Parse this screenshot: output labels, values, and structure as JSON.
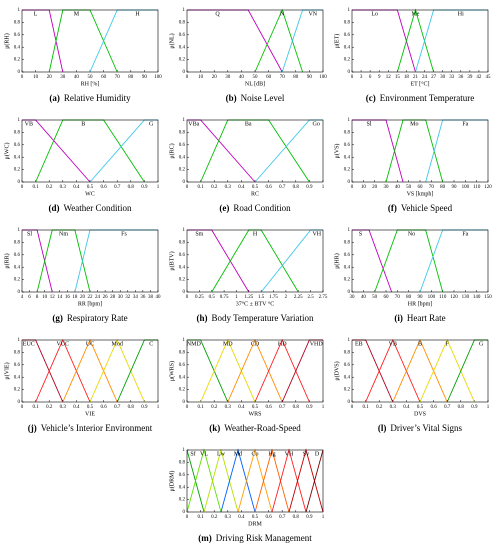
{
  "chart_data": [
    {
      "type": "line",
      "label": "(a)",
      "title": "Relative Humidity",
      "xlabel": "RH [%]",
      "ylabel": "μ(RH)",
      "xlim": [
        0,
        100
      ],
      "ylim": [
        0,
        1
      ],
      "xticks": [
        0,
        10,
        20,
        30,
        40,
        50,
        60,
        70,
        80,
        90,
        100
      ],
      "yticks": [
        0,
        0.2,
        0.4,
        0.6,
        0.8,
        1
      ],
      "series": [
        {
          "name": "L",
          "color": "#c000c0",
          "x": [
            0,
            20,
            30
          ],
          "values": [
            1,
            1,
            0
          ]
        },
        {
          "name": "M",
          "color": "#00c000",
          "x": [
            20,
            30,
            50,
            70
          ],
          "values": [
            0,
            1,
            1,
            0
          ]
        },
        {
          "name": "H",
          "color": "#40c8e8",
          "x": [
            50,
            70,
            100
          ],
          "values": [
            0,
            1,
            1
          ]
        }
      ]
    },
    {
      "type": "line",
      "label": "(b)",
      "title": "Noise Level",
      "xlabel": "NL [dB]",
      "ylabel": "μ(NL)",
      "xlim": [
        0,
        100
      ],
      "ylim": [
        0,
        1
      ],
      "xticks": [
        0,
        10,
        20,
        30,
        40,
        50,
        60,
        70,
        80,
        90,
        100
      ],
      "yticks": [
        0,
        0.2,
        0.4,
        0.6,
        0.8,
        1
      ],
      "series": [
        {
          "name": "Q",
          "color": "#c000c0",
          "x": [
            0,
            45,
            70
          ],
          "values": [
            1,
            1,
            0
          ]
        },
        {
          "name": "N",
          "color": "#00c000",
          "x": [
            50,
            70,
            85
          ],
          "values": [
            0,
            1,
            0
          ]
        },
        {
          "name": "VN",
          "color": "#40c8e8",
          "x": [
            70,
            85,
            100
          ],
          "values": [
            0,
            1,
            1
          ]
        }
      ]
    },
    {
      "type": "line",
      "label": "(c)",
      "title": "Environment Temperature",
      "xlabel": "ET [°C]",
      "ylabel": "μ(ET)",
      "xlim": [
        0,
        45
      ],
      "ylim": [
        0,
        1
      ],
      "xticks": [
        0,
        3,
        6,
        9,
        12,
        15,
        18,
        21,
        24,
        27,
        30,
        33,
        36,
        39,
        42,
        45
      ],
      "yticks": [
        0,
        0.2,
        0.4,
        0.6,
        0.8,
        1
      ],
      "series": [
        {
          "name": "Lo",
          "color": "#c000c0",
          "x": [
            0,
            15,
            21
          ],
          "values": [
            1,
            1,
            0
          ]
        },
        {
          "name": "Me",
          "color": "#00c000",
          "x": [
            15,
            21,
            27
          ],
          "values": [
            0,
            1,
            0
          ]
        },
        {
          "name": "Hi",
          "color": "#40c8e8",
          "x": [
            21,
            27,
            45
          ],
          "values": [
            0,
            1,
            1
          ]
        }
      ]
    },
    {
      "type": "line",
      "label": "(d)",
      "title": "Weather Condition",
      "xlabel": "WC",
      "ylabel": "μ(WC)",
      "xlim": [
        0,
        1
      ],
      "ylim": [
        0,
        1
      ],
      "xticks": [
        0,
        0.1,
        0.2,
        0.3,
        0.4,
        0.5,
        0.6,
        0.7,
        0.8,
        0.9,
        1
      ],
      "yticks": [
        0,
        0.2,
        0.4,
        0.6,
        0.8,
        1
      ],
      "series": [
        {
          "name": "VB",
          "color": "#c000c0",
          "x": [
            0,
            0.1,
            0.5
          ],
          "values": [
            1,
            1,
            0
          ]
        },
        {
          "name": "B",
          "color": "#00c000",
          "x": [
            0.1,
            0.3,
            0.6,
            0.9
          ],
          "values": [
            0,
            1,
            1,
            0
          ]
        },
        {
          "name": "G",
          "color": "#40c8e8",
          "x": [
            0.5,
            0.9,
            1
          ],
          "values": [
            0,
            1,
            1
          ]
        }
      ]
    },
    {
      "type": "line",
      "label": "(e)",
      "title": "Road Condition",
      "xlabel": "RC",
      "ylabel": "μ(RC)",
      "xlim": [
        0,
        1
      ],
      "ylim": [
        0,
        1
      ],
      "xticks": [
        0,
        0.1,
        0.2,
        0.3,
        0.4,
        0.5,
        0.6,
        0.7,
        0.8,
        0.9,
        1
      ],
      "yticks": [
        0,
        0.2,
        0.4,
        0.6,
        0.8,
        1
      ],
      "series": [
        {
          "name": "VBa",
          "color": "#c000c0",
          "x": [
            0,
            0.1,
            0.5
          ],
          "values": [
            1,
            1,
            0
          ]
        },
        {
          "name": "Ba",
          "color": "#00c000",
          "x": [
            0.1,
            0.3,
            0.6,
            0.9
          ],
          "values": [
            0,
            1,
            1,
            0
          ]
        },
        {
          "name": "Go",
          "color": "#40c8e8",
          "x": [
            0.5,
            0.9,
            1
          ],
          "values": [
            0,
            1,
            1
          ]
        }
      ]
    },
    {
      "type": "line",
      "label": "(f)",
      "title": "Vehicle Speed",
      "xlabel": "VS [kmph]",
      "ylabel": "μ(VS)",
      "xlim": [
        0,
        120
      ],
      "ylim": [
        0,
        1
      ],
      "xticks": [
        0,
        10,
        20,
        30,
        40,
        50,
        60,
        70,
        80,
        90,
        100,
        110,
        120
      ],
      "yticks": [
        0,
        0.2,
        0.4,
        0.6,
        0.8,
        1
      ],
      "series": [
        {
          "name": "Sl",
          "color": "#c000c0",
          "x": [
            0,
            30,
            45
          ],
          "values": [
            1,
            1,
            0
          ]
        },
        {
          "name": "Mo",
          "color": "#00c000",
          "x": [
            30,
            45,
            65,
            80
          ],
          "values": [
            0,
            1,
            1,
            0
          ]
        },
        {
          "name": "Fa",
          "color": "#40c8e8",
          "x": [
            65,
            80,
            120
          ],
          "values": [
            0,
            1,
            1
          ]
        }
      ]
    },
    {
      "type": "line",
      "label": "(g)",
      "title": "Respiratory Rate",
      "xlabel": "RR [bpm]",
      "ylabel": "μ(RR)",
      "xlim": [
        4,
        40
      ],
      "ylim": [
        0,
        1
      ],
      "xticks": [
        4,
        6,
        8,
        10,
        12,
        14,
        16,
        18,
        20,
        22,
        24,
        26,
        28,
        30,
        32,
        34,
        36,
        38,
        40
      ],
      "yticks": [
        0,
        0.2,
        0.4,
        0.6,
        0.8,
        1
      ],
      "series": [
        {
          "name": "Sl",
          "color": "#c000c0",
          "x": [
            4,
            8,
            12
          ],
          "values": [
            1,
            1,
            0
          ]
        },
        {
          "name": "Nm",
          "color": "#00c000",
          "x": [
            8,
            12,
            18,
            22
          ],
          "values": [
            0,
            1,
            1,
            0
          ]
        },
        {
          "name": "Fs",
          "color": "#40c8e8",
          "x": [
            18,
            22,
            40
          ],
          "values": [
            0,
            1,
            1
          ]
        }
      ]
    },
    {
      "type": "line",
      "label": "(h)",
      "title": "Body Temperature Variation",
      "xlabel": "37°C ± BTV °C",
      "ylabel": "μ(BTV)",
      "xlim": [
        0,
        2.75
      ],
      "ylim": [
        0,
        1
      ],
      "xticks": [
        0,
        0.25,
        0.5,
        0.75,
        1,
        1.25,
        1.5,
        1.75,
        2,
        2.25,
        2.5,
        2.75
      ],
      "yticks": [
        0,
        0.2,
        0.4,
        0.6,
        0.8,
        1
      ],
      "series": [
        {
          "name": "Sm",
          "color": "#c000c0",
          "x": [
            0,
            0.5,
            1.25
          ],
          "values": [
            1,
            1,
            0
          ]
        },
        {
          "name": "H",
          "color": "#00c000",
          "x": [
            0.5,
            1.25,
            1.5,
            2.25
          ],
          "values": [
            0,
            1,
            1,
            0
          ]
        },
        {
          "name": "VH",
          "color": "#40c8e8",
          "x": [
            1.5,
            2.5,
            2.75
          ],
          "values": [
            0,
            1,
            1
          ]
        }
      ]
    },
    {
      "type": "line",
      "label": "(i)",
      "title": "Heart Rate",
      "xlabel": "HR [bpm]",
      "ylabel": "μ(HR)",
      "xlim": [
        30,
        150
      ],
      "ylim": [
        0,
        1
      ],
      "xticks": [
        30,
        40,
        50,
        60,
        70,
        80,
        90,
        100,
        110,
        120,
        130,
        140,
        150
      ],
      "yticks": [
        0,
        0.2,
        0.4,
        0.6,
        0.8,
        1
      ],
      "series": [
        {
          "name": "S",
          "color": "#c000c0",
          "x": [
            30,
            45,
            65
          ],
          "values": [
            1,
            1,
            0
          ]
        },
        {
          "name": "No",
          "color": "#00c000",
          "x": [
            50,
            70,
            95,
            110
          ],
          "values": [
            0,
            1,
            1,
            0
          ]
        },
        {
          "name": "Fa",
          "color": "#40c8e8",
          "x": [
            90,
            110,
            150
          ],
          "values": [
            0,
            1,
            1
          ]
        }
      ]
    },
    {
      "type": "line",
      "label": "(j)",
      "title": "Vehicle’s Interior Environment",
      "xlabel": "VIE",
      "ylabel": "μ(VIE)",
      "xlim": [
        0,
        1
      ],
      "ylim": [
        0,
        1
      ],
      "xticks": [
        0,
        0.1,
        0.2,
        0.3,
        0.4,
        0.5,
        0.6,
        0.7,
        0.8,
        0.9,
        1
      ],
      "yticks": [
        0,
        0.2,
        0.4,
        0.6,
        0.8,
        1
      ],
      "series": [
        {
          "name": "EUC",
          "color": "#b00020",
          "x": [
            0,
            0.1,
            0.3
          ],
          "values": [
            1,
            1,
            0
          ]
        },
        {
          "name": "VUC",
          "color": "#ff2020",
          "x": [
            0.1,
            0.3,
            0.5
          ],
          "values": [
            0,
            1,
            0
          ]
        },
        {
          "name": "UC",
          "color": "#ff8c00",
          "x": [
            0.3,
            0.5,
            0.7
          ],
          "values": [
            0,
            1,
            0
          ]
        },
        {
          "name": "Mod",
          "color": "#e8d800",
          "x": [
            0.5,
            0.7,
            0.9
          ],
          "values": [
            0,
            1,
            0
          ]
        },
        {
          "name": "C",
          "color": "#00a000",
          "x": [
            0.7,
            0.9,
            1
          ],
          "values": [
            0,
            1,
            1
          ]
        }
      ]
    },
    {
      "type": "line",
      "label": "(k)",
      "title": "Weather-Road-Speed",
      "xlabel": "WRS",
      "ylabel": "μ(WRS)",
      "xlim": [
        0,
        1
      ],
      "ylim": [
        0,
        1
      ],
      "xticks": [
        0,
        0.1,
        0.2,
        0.3,
        0.4,
        0.5,
        0.6,
        0.7,
        0.8,
        0.9,
        1
      ],
      "yticks": [
        0,
        0.2,
        0.4,
        0.6,
        0.8,
        1
      ],
      "series": [
        {
          "name": "NMD",
          "color": "#00a000",
          "x": [
            0,
            0.1,
            0.3
          ],
          "values": [
            1,
            1,
            0
          ]
        },
        {
          "name": "MD",
          "color": "#e8d800",
          "x": [
            0.1,
            0.3,
            0.5
          ],
          "values": [
            0,
            1,
            0
          ]
        },
        {
          "name": "CD",
          "color": "#ff8c00",
          "x": [
            0.3,
            0.5,
            0.7
          ],
          "values": [
            0,
            1,
            0
          ]
        },
        {
          "name": "HD",
          "color": "#ff2020",
          "x": [
            0.5,
            0.7,
            0.9
          ],
          "values": [
            0,
            1,
            0
          ]
        },
        {
          "name": "VHD",
          "color": "#b00020",
          "x": [
            0.7,
            0.9,
            1
          ],
          "values": [
            0,
            1,
            1
          ]
        }
      ]
    },
    {
      "type": "line",
      "label": "(l)",
      "title": "Driver’s Vital Signs",
      "xlabel": "DVS",
      "ylabel": "μ(DVS)",
      "xlim": [
        0,
        1
      ],
      "ylim": [
        0,
        1
      ],
      "xticks": [
        0,
        0.1,
        0.2,
        0.3,
        0.4,
        0.5,
        0.6,
        0.7,
        0.8,
        0.9,
        1
      ],
      "yticks": [
        0,
        0.2,
        0.4,
        0.6,
        0.8,
        1
      ],
      "series": [
        {
          "name": "EB",
          "color": "#b00020",
          "x": [
            0,
            0.1,
            0.3
          ],
          "values": [
            1,
            1,
            0
          ]
        },
        {
          "name": "VB",
          "color": "#ff2020",
          "x": [
            0.1,
            0.3,
            0.5
          ],
          "values": [
            0,
            1,
            0
          ]
        },
        {
          "name": "B",
          "color": "#ff8c00",
          "x": [
            0.3,
            0.5,
            0.7
          ],
          "values": [
            0,
            1,
            0
          ]
        },
        {
          "name": "F",
          "color": "#e8d800",
          "x": [
            0.5,
            0.7,
            0.9
          ],
          "values": [
            0,
            1,
            0
          ]
        },
        {
          "name": "G",
          "color": "#00a000",
          "x": [
            0.7,
            0.9,
            1
          ],
          "values": [
            0,
            1,
            1
          ]
        }
      ]
    },
    {
      "type": "line",
      "label": "(m)",
      "title": "Driving Risk Management",
      "xlabel": "DRM",
      "ylabel": "μ(DRM)",
      "xlim": [
        0,
        1
      ],
      "ylim": [
        0,
        1
      ],
      "xticks": [
        0,
        0.1,
        0.2,
        0.3,
        0.4,
        0.5,
        0.6,
        0.7,
        0.8,
        0.9,
        1
      ],
      "yticks": [
        0,
        0.2,
        0.4,
        0.6,
        0.8,
        1
      ],
      "series": [
        {
          "name": "Sf",
          "color": "#00a000",
          "x": [
            0,
            0.125
          ],
          "values": [
            1,
            0
          ]
        },
        {
          "name": "VL",
          "color": "#60e000",
          "x": [
            0,
            0.125,
            0.25
          ],
          "values": [
            0,
            1,
            0
          ]
        },
        {
          "name": "Lw",
          "color": "#b8e000",
          "x": [
            0.125,
            0.25,
            0.375
          ],
          "values": [
            0,
            1,
            0
          ]
        },
        {
          "name": "Md",
          "color": "#0060ff",
          "x": [
            0.25,
            0.375,
            0.5
          ],
          "values": [
            0,
            1,
            0
          ]
        },
        {
          "name": "Co",
          "color": "#ffa000",
          "x": [
            0.375,
            0.5,
            0.625
          ],
          "values": [
            0,
            1,
            0
          ]
        },
        {
          "name": "Hg",
          "color": "#ff6000",
          "x": [
            0.5,
            0.625,
            0.75
          ],
          "values": [
            0,
            1,
            0
          ]
        },
        {
          "name": "VH",
          "color": "#ff2020",
          "x": [
            0.625,
            0.75,
            0.875
          ],
          "values": [
            0,
            1,
            0
          ]
        },
        {
          "name": "Sv",
          "color": "#c00000",
          "x": [
            0.75,
            0.875,
            1
          ],
          "values": [
            0,
            1,
            0
          ]
        },
        {
          "name": "D",
          "color": "#800000",
          "x": [
            0.875,
            1
          ],
          "values": [
            0,
            1
          ]
        }
      ]
    }
  ]
}
